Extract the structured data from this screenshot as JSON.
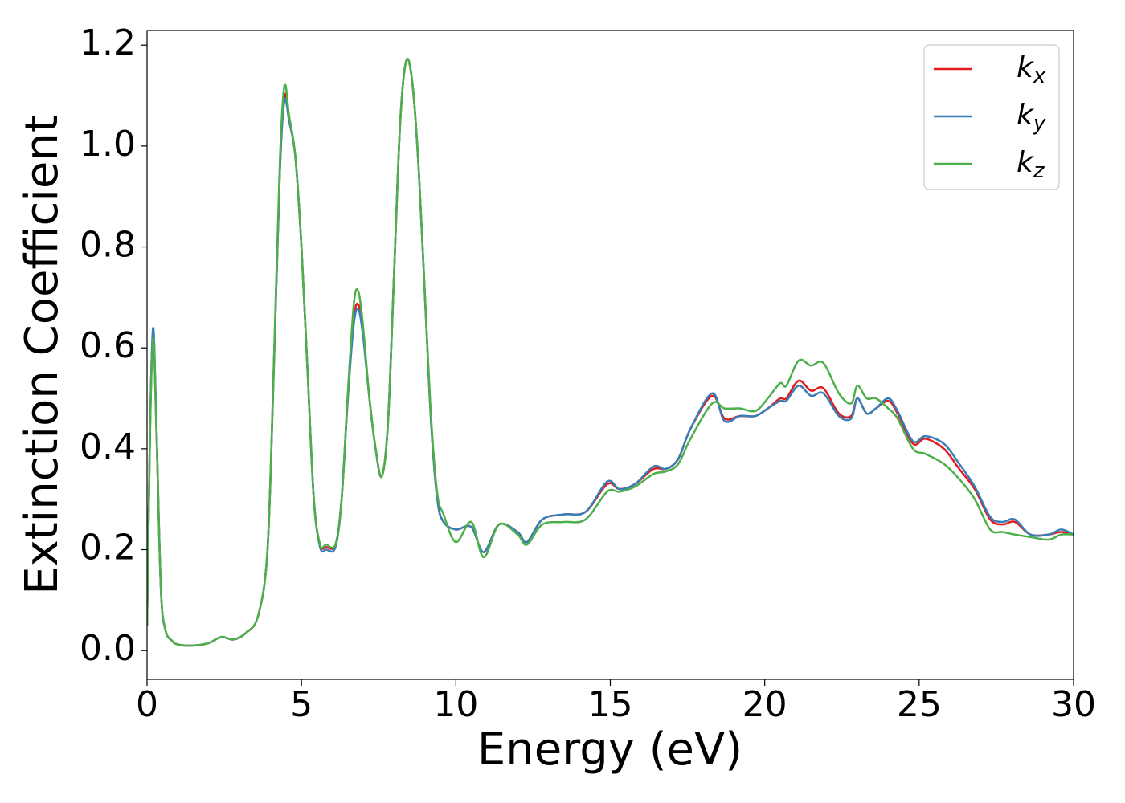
{
  "chart_data": {
    "type": "line",
    "xlabel": "Energy (eV)",
    "ylabel": "Extinction Coefficient",
    "x": [
      0,
      0.1,
      0.2,
      0.3,
      0.45,
      0.6,
      0.8,
      1.0,
      1.5,
      2.0,
      2.4,
      2.8,
      3.2,
      3.6,
      3.9,
      4.1,
      4.3,
      4.45,
      4.6,
      4.8,
      5.0,
      5.2,
      5.4,
      5.6,
      5.8,
      6.1,
      6.3,
      6.5,
      6.7,
      6.85,
      7.0,
      7.2,
      7.4,
      7.6,
      7.8,
      8.0,
      8.2,
      8.4,
      8.6,
      8.8,
      9.0,
      9.2,
      9.4,
      9.6,
      10.0,
      10.5,
      10.9,
      11.4,
      12.0,
      12.3,
      12.8,
      13.5,
      14.2,
      14.9,
      15.3,
      15.8,
      16.4,
      16.8,
      17.2,
      17.6,
      18.3,
      18.7,
      19.2,
      19.7,
      20.1,
      20.5,
      20.7,
      21.1,
      21.5,
      21.9,
      22.4,
      22.8,
      23.0,
      23.3,
      23.6,
      24.0,
      24.3,
      24.8,
      25.2,
      25.8,
      26.3,
      26.8,
      27.3,
      27.7,
      28.1,
      28.6,
      29.2,
      29.6,
      30.0
    ],
    "series": [
      {
        "name": "kx",
        "color": "#e41a1c",
        "values": [
          0.05,
          0.45,
          0.63,
          0.45,
          0.12,
          0.04,
          0.02,
          0.012,
          0.01,
          0.015,
          0.027,
          0.022,
          0.035,
          0.07,
          0.2,
          0.55,
          0.95,
          1.1,
          1.05,
          0.98,
          0.8,
          0.55,
          0.3,
          0.21,
          0.205,
          0.21,
          0.3,
          0.5,
          0.66,
          0.685,
          0.63,
          0.5,
          0.4,
          0.345,
          0.45,
          0.75,
          1.05,
          1.17,
          1.12,
          0.95,
          0.7,
          0.45,
          0.3,
          0.255,
          0.24,
          0.245,
          0.195,
          0.25,
          0.235,
          0.215,
          0.26,
          0.27,
          0.275,
          0.33,
          0.32,
          0.33,
          0.36,
          0.36,
          0.38,
          0.44,
          0.505,
          0.46,
          0.465,
          0.465,
          0.48,
          0.5,
          0.5,
          0.535,
          0.515,
          0.52,
          0.47,
          0.465,
          0.5,
          0.47,
          0.48,
          0.495,
          0.47,
          0.41,
          0.42,
          0.4,
          0.36,
          0.32,
          0.26,
          0.25,
          0.255,
          0.23,
          0.23,
          0.235,
          0.23
        ]
      },
      {
        "name": "ky",
        "color": "#377eb8",
        "values": [
          0.05,
          0.45,
          0.64,
          0.45,
          0.12,
          0.04,
          0.02,
          0.012,
          0.01,
          0.015,
          0.027,
          0.022,
          0.035,
          0.07,
          0.2,
          0.55,
          0.95,
          1.09,
          1.05,
          0.98,
          0.8,
          0.55,
          0.3,
          0.205,
          0.2,
          0.205,
          0.3,
          0.5,
          0.65,
          0.675,
          0.62,
          0.5,
          0.4,
          0.345,
          0.45,
          0.75,
          1.05,
          1.17,
          1.12,
          0.95,
          0.7,
          0.45,
          0.3,
          0.255,
          0.24,
          0.245,
          0.195,
          0.25,
          0.235,
          0.215,
          0.26,
          0.27,
          0.275,
          0.335,
          0.32,
          0.33,
          0.365,
          0.36,
          0.38,
          0.44,
          0.51,
          0.455,
          0.465,
          0.465,
          0.48,
          0.495,
          0.495,
          0.525,
          0.505,
          0.51,
          0.465,
          0.46,
          0.5,
          0.47,
          0.48,
          0.5,
          0.475,
          0.415,
          0.425,
          0.41,
          0.37,
          0.325,
          0.265,
          0.255,
          0.26,
          0.23,
          0.23,
          0.24,
          0.23
        ]
      },
      {
        "name": "kz",
        "color": "#4daf4a",
        "values": [
          0.05,
          0.44,
          0.62,
          0.44,
          0.12,
          0.04,
          0.02,
          0.012,
          0.01,
          0.015,
          0.027,
          0.022,
          0.035,
          0.07,
          0.2,
          0.56,
          0.97,
          1.12,
          1.06,
          0.98,
          0.8,
          0.55,
          0.3,
          0.21,
          0.21,
          0.21,
          0.3,
          0.51,
          0.69,
          0.71,
          0.64,
          0.5,
          0.4,
          0.345,
          0.45,
          0.75,
          1.05,
          1.17,
          1.12,
          0.95,
          0.7,
          0.46,
          0.31,
          0.27,
          0.215,
          0.255,
          0.185,
          0.25,
          0.23,
          0.21,
          0.25,
          0.255,
          0.26,
          0.315,
          0.315,
          0.325,
          0.35,
          0.355,
          0.37,
          0.42,
          0.49,
          0.48,
          0.48,
          0.475,
          0.5,
          0.53,
          0.525,
          0.575,
          0.565,
          0.57,
          0.51,
          0.49,
          0.525,
          0.5,
          0.5,
          0.48,
          0.46,
          0.4,
          0.39,
          0.37,
          0.34,
          0.3,
          0.24,
          0.235,
          0.23,
          0.225,
          0.22,
          0.23,
          0.23
        ]
      }
    ],
    "xlim": [
      0,
      30
    ],
    "xticks": [
      0,
      5,
      10,
      15,
      20,
      25,
      30
    ],
    "ylim": [
      -0.057,
      1.229
    ],
    "yticks": [
      {
        "value": 0,
        "label": "0.0"
      },
      0.2,
      0.4,
      0.6,
      0.8,
      {
        "value": 1,
        "label": "1.0"
      },
      1.2
    ],
    "grid": false,
    "legend": "upper right"
  }
}
